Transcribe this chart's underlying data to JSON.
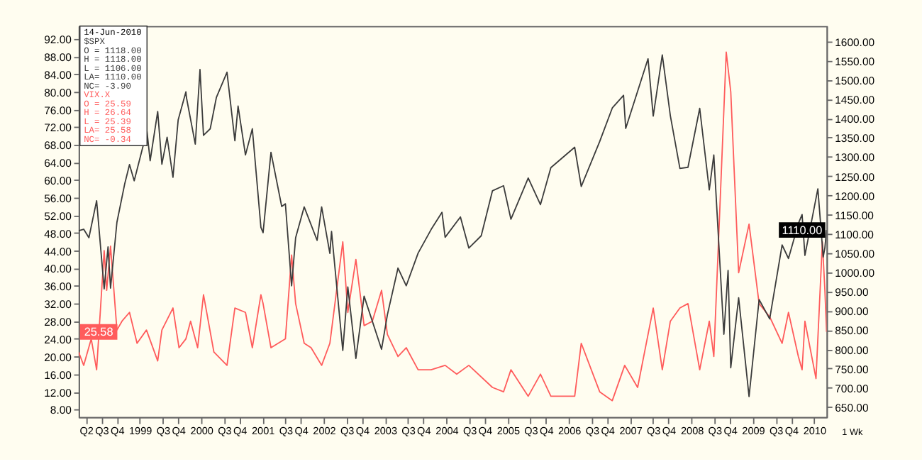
{
  "chart_data": {
    "type": "line",
    "x": [
      "1998-04-01",
      "1998-05-01",
      "1998-06-01",
      "1998-07-17",
      "1998-08-31",
      "1998-09-23",
      "1998-10-08",
      "1998-11-15",
      "1998-12-31",
      "1999-01-29",
      "1999-02-26",
      "1999-04-15",
      "1999-05-13",
      "1999-06-01",
      "1999-07-16",
      "1999-08-10",
      "1999-09-10",
      "1999-10-15",
      "1999-11-15",
      "1999-12-31",
      "2000-01-03",
      "2000-02-25",
      "2000-03-24",
      "2000-04-14",
      "2000-05-24",
      "2000-06-30",
      "2000-09-01",
      "2000-10-18",
      "2000-11-06",
      "2000-12-20",
      "2001-01-30",
      "2001-03-22",
      "2001-04-04",
      "2001-05-21",
      "2001-07-24",
      "2001-08-15",
      "2001-09-21",
      "2001-10-15",
      "2001-12-05",
      "2002-02-20",
      "2002-03-19",
      "2002-05-07",
      "2002-05-17",
      "2002-07-23",
      "2002-08-22",
      "2002-10-09",
      "2002-11-27",
      "2003-03-11",
      "2003-04-15",
      "2003-06-17",
      "2003-08-05",
      "2003-10-15",
      "2003-12-31",
      "2004-03-05",
      "2004-03-24",
      "2004-06-23",
      "2004-08-12",
      "2004-10-25",
      "2004-12-31",
      "2005-03-07",
      "2005-04-20",
      "2005-08-01",
      "2005-10-13",
      "2005-12-14",
      "2006-05-05",
      "2006-06-13",
      "2006-10-01",
      "2006-12-15",
      "2007-02-20",
      "2007-03-05",
      "2007-07-16",
      "2007-08-16",
      "2007-10-09",
      "2007-11-26",
      "2008-01-22",
      "2008-03-10",
      "2008-05-19",
      "2008-07-15",
      "2008-08-11",
      "2008-10-10",
      "2008-11-04",
      "2008-11-20",
      "2009-01-06",
      "2009-03-09",
      "2009-05-08",
      "2009-07-10",
      "2009-09-22",
      "2009-10-30",
      "2009-12-28",
      "2010-01-19",
      "2010-02-05",
      "2010-04-23",
      "2010-05-25",
      "2010-06-04",
      "2010-06-14"
    ],
    "series": [
      {
        "name": "$SPX",
        "color": "#3c3c3c",
        "axis": "y2",
        "values": [
          1108,
          1112,
          1090,
          1186,
          957,
          1066,
          959,
          1130,
          1229,
          1280,
          1238,
          1320,
          1367,
          1290,
          1418,
          1281,
          1351,
          1247,
          1396,
          1469,
          1455,
          1333,
          1527,
          1356,
          1373,
          1455,
          1520,
          1342,
          1432,
          1305,
          1373,
          1117,
          1103,
          1312,
          1171,
          1178,
          965,
          1090,
          1170,
          1083,
          1170,
          1049,
          1106,
          797,
          962,
          776,
          938,
          800,
          890,
          1011,
          965,
          1050,
          1111,
          1156,
          1091,
          1144,
          1063,
          1095,
          1212,
          1225,
          1138,
          1245,
          1176,
          1272,
          1325,
          1223,
          1340,
          1427,
          1460,
          1374,
          1555,
          1406,
          1565,
          1407,
          1270,
          1273,
          1426,
          1214,
          1305,
          839,
          1005,
          752,
          934,
          677,
          929,
          879,
          1071,
          1036,
          1127,
          1150,
          1044,
          1217,
          1040,
          1064,
          1110
        ]
      },
      {
        "name": "VIX.X",
        "color": "#ff5c5c",
        "x": [
          "1998-04-01",
          "1998-05-01",
          "1998-06-15",
          "1998-07-17",
          "1998-08-31",
          "1998-09-15",
          "1998-10-08",
          "1998-11-15",
          "1998-12-15",
          "1999-01-29",
          "1999-03-15",
          "1999-05-10",
          "1999-07-16",
          "1999-08-10",
          "1999-10-15",
          "1999-11-20",
          "1999-12-31",
          "2000-01-28",
          "2000-03-10",
          "2000-04-14",
          "2000-06-15",
          "2000-09-01",
          "2000-10-18",
          "2000-12-20",
          "2001-01-30",
          "2001-03-22",
          "2001-04-04",
          "2001-05-21",
          "2001-08-15",
          "2001-09-21",
          "2001-10-15",
          "2001-12-05",
          "2002-01-15",
          "2002-03-19",
          "2002-05-07",
          "2002-07-23",
          "2002-08-22",
          "2002-10-09",
          "2002-11-27",
          "2003-01-15",
          "2003-03-11",
          "2003-04-15",
          "2003-06-17",
          "2003-08-05",
          "2003-10-15",
          "2003-12-31",
          "2004-03-24",
          "2004-06-01",
          "2004-08-12",
          "2004-12-31",
          "2005-03-07",
          "2005-04-20",
          "2005-08-01",
          "2005-10-13",
          "2005-12-14",
          "2006-05-05",
          "2006-06-13",
          "2006-10-01",
          "2006-12-15",
          "2007-02-27",
          "2007-05-15",
          "2007-08-16",
          "2007-10-09",
          "2007-11-26",
          "2008-01-22",
          "2008-03-10",
          "2008-05-19",
          "2008-07-15",
          "2008-08-11",
          "2008-10-24",
          "2008-11-20",
          "2009-01-06",
          "2009-03-09",
          "2009-05-08",
          "2009-07-10",
          "2009-09-22",
          "2009-10-30",
          "2009-12-28",
          "2010-01-19",
          "2010-02-05",
          "2010-04-12",
          "2010-05-20",
          "2010-06-04",
          "2010-06-14"
        ],
        "values": [
          21,
          18,
          24,
          17,
          44,
          35,
          45,
          26,
          28,
          30,
          23,
          26,
          19,
          26,
          31,
          22,
          24,
          28,
          22,
          34,
          21,
          18,
          31,
          30,
          22,
          34,
          32,
          22,
          24,
          43,
          32,
          23,
          22,
          18,
          23,
          46,
          30,
          42,
          27,
          28,
          35,
          25,
          20,
          22,
          17,
          17,
          18,
          16,
          18,
          13,
          12,
          17,
          11,
          16,
          11,
          11,
          23,
          12,
          10,
          18,
          13,
          31,
          17,
          28,
          31,
          32,
          17,
          28,
          20,
          89,
          80,
          39,
          50,
          32,
          29,
          23,
          30,
          20,
          17,
          28,
          15,
          46,
          35,
          25.58
        ]
      }
    ],
    "xlim": [
      "1998-04-01",
      "2010-06-14"
    ],
    "xticks": [
      {
        "value": "1998-05-15",
        "label": "Q2"
      },
      {
        "value": "1998-08-15",
        "label": "Q3"
      },
      {
        "value": "1998-11-15",
        "label": "Q4"
      },
      {
        "value": "1999-04-01",
        "label": "1999"
      },
      {
        "value": "1999-08-15",
        "label": "Q3"
      },
      {
        "value": "1999-11-15",
        "label": "Q4"
      },
      {
        "value": "2000-04-01",
        "label": "2000"
      },
      {
        "value": "2000-08-15",
        "label": "Q3"
      },
      {
        "value": "2000-11-15",
        "label": "Q4"
      },
      {
        "value": "2001-04-01",
        "label": "2001"
      },
      {
        "value": "2001-08-15",
        "label": "Q3"
      },
      {
        "value": "2001-11-15",
        "label": "Q4"
      },
      {
        "value": "2002-04-01",
        "label": "2002"
      },
      {
        "value": "2002-08-15",
        "label": "Q3"
      },
      {
        "value": "2002-11-15",
        "label": "Q4"
      },
      {
        "value": "2003-04-01",
        "label": "2003"
      },
      {
        "value": "2003-08-15",
        "label": "Q3"
      },
      {
        "value": "2003-11-15",
        "label": "Q4"
      },
      {
        "value": "2004-04-01",
        "label": "2004"
      },
      {
        "value": "2004-08-15",
        "label": "Q3"
      },
      {
        "value": "2004-11-15",
        "label": "Q4"
      },
      {
        "value": "2005-04-01",
        "label": "2005"
      },
      {
        "value": "2005-08-15",
        "label": "Q3"
      },
      {
        "value": "2005-11-15",
        "label": "Q4"
      },
      {
        "value": "2006-04-01",
        "label": "2006"
      },
      {
        "value": "2006-08-15",
        "label": "Q3"
      },
      {
        "value": "2006-11-15",
        "label": "Q4"
      },
      {
        "value": "2007-04-01",
        "label": "2007"
      },
      {
        "value": "2007-08-15",
        "label": "Q3"
      },
      {
        "value": "2007-11-15",
        "label": "Q4"
      },
      {
        "value": "2008-04-01",
        "label": "2008"
      },
      {
        "value": "2008-08-15",
        "label": "Q3"
      },
      {
        "value": "2008-11-15",
        "label": "Q4"
      },
      {
        "value": "2009-04-01",
        "label": "2009"
      },
      {
        "value": "2009-08-15",
        "label": "Q3"
      },
      {
        "value": "2009-11-15",
        "label": "Q4"
      },
      {
        "value": "2010-04-01",
        "label": "2010"
      }
    ],
    "ylim": [
      6.3,
      94.9
    ],
    "yticks": [
      {
        "value": 8,
        "label": "8.00"
      },
      {
        "value": 12,
        "label": "12.00"
      },
      {
        "value": 16,
        "label": "16.00"
      },
      {
        "value": 20,
        "label": "20.00"
      },
      {
        "value": 24,
        "label": "24.00"
      },
      {
        "value": 28,
        "label": "28.00"
      },
      {
        "value": 32,
        "label": "32.00"
      },
      {
        "value": 36,
        "label": "36.00"
      },
      {
        "value": 40,
        "label": "40.00"
      },
      {
        "value": 44,
        "label": "44.00"
      },
      {
        "value": 48,
        "label": "48.00"
      },
      {
        "value": 52,
        "label": "52.00"
      },
      {
        "value": 56,
        "label": "56.00"
      },
      {
        "value": 60,
        "label": "60.00"
      },
      {
        "value": 64,
        "label": "64.00"
      },
      {
        "value": 68,
        "label": "68.00"
      },
      {
        "value": 72,
        "label": "72.00"
      },
      {
        "value": 76,
        "label": "76.00"
      },
      {
        "value": 80,
        "label": "80.00"
      },
      {
        "value": 84,
        "label": "84.00"
      },
      {
        "value": 88,
        "label": "88.00"
      },
      {
        "value": 92,
        "label": "92.00"
      }
    ],
    "y2lim": [
      624,
      1640
    ],
    "y2ticks": [
      {
        "value": 650,
        "label": "650.00"
      },
      {
        "value": 700,
        "label": "700.00"
      },
      {
        "value": 750,
        "label": "750.00"
      },
      {
        "value": 800,
        "label": "800.00"
      },
      {
        "value": 850,
        "label": "850.00"
      },
      {
        "value": 900,
        "label": "900.00"
      },
      {
        "value": 950,
        "label": "950.00"
      },
      {
        "value": 1000,
        "label": "1000.00"
      },
      {
        "value": 1050,
        "label": "1050.00"
      },
      {
        "value": 1100,
        "label": "1100.00"
      },
      {
        "value": 1150,
        "label": "1150.00"
      },
      {
        "value": 1200,
        "label": "1200.00"
      },
      {
        "value": 1250,
        "label": "1250.00"
      },
      {
        "value": 1300,
        "label": "1300.00"
      },
      {
        "value": 1350,
        "label": "1350.00"
      },
      {
        "value": 1400,
        "label": "1400.00"
      },
      {
        "value": 1450,
        "label": "1450.00"
      },
      {
        "value": 1500,
        "label": "1500.00"
      },
      {
        "value": 1550,
        "label": "1550.00"
      },
      {
        "value": 1600,
        "label": "1600.00"
      }
    ],
    "annotations": [
      "14-Jun-2010",
      "O = 1118.00",
      "H = 1118.00",
      "L = 1106.00",
      "LA= 1110.00",
      "NC= -3.90",
      "O = 25.59",
      "H = 26.64",
      "L = 25.39",
      "LA= 25.58",
      "NC= -0.34",
      "25.58",
      "1110.00",
      "1 Wk"
    ],
    "legend": "top left",
    "grid": false,
    "line_style": "solid",
    "marker": "none"
  }
}
